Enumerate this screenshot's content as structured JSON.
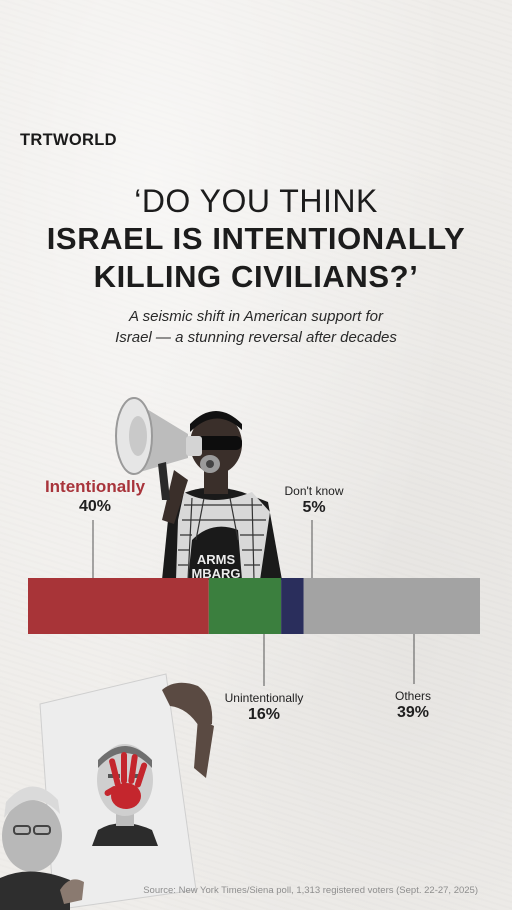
{
  "logo": "TRTWORLD",
  "headline": {
    "line1": "‘DO YOU THINK",
    "line2": "ISRAEL IS INTENTIONALLY",
    "line3": "KILLING CIVILIANS?’"
  },
  "subtitle": {
    "line1": "A seismic shift in American support for",
    "line2": "Israel — a stunning reversal after decades"
  },
  "chart_data": {
    "type": "bar",
    "orientation": "horizontal-stacked",
    "categories": [
      "Intentionally",
      "Unintentionally",
      "Don't know",
      "Others"
    ],
    "values": [
      40,
      16,
      5,
      39
    ],
    "labels": [
      "40%",
      "16%",
      "5%",
      "39%"
    ],
    "colors": [
      "#a83438",
      "#3b7f3e",
      "#2a2e5c",
      "#a3a3a3"
    ],
    "unit": "%"
  },
  "photo_text": {
    "shirt_line1": "ARMS",
    "shirt_line2": "MBARG"
  },
  "source": "Source: New York Times/Siena poll, 1,313 registered voters (Sept. 22-27, 2025)"
}
